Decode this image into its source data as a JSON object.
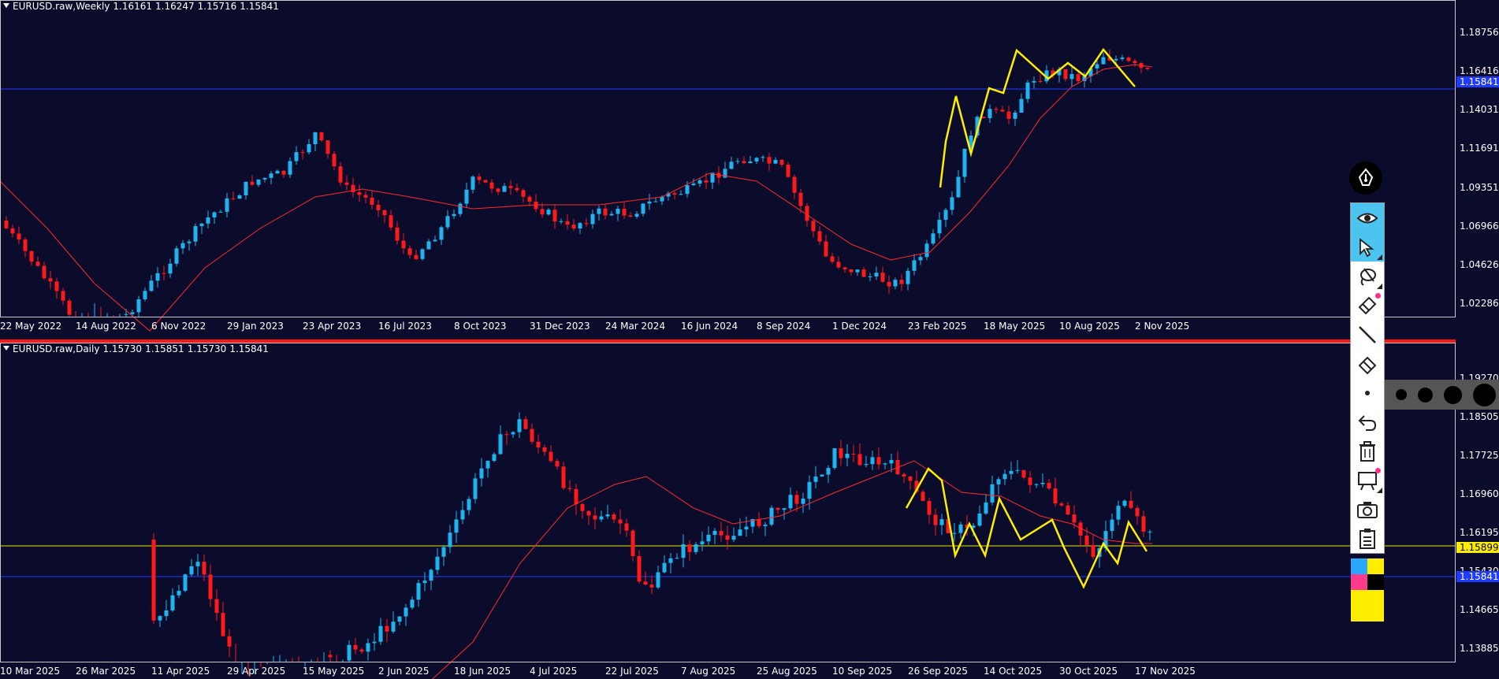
{
  "weekly_chart": {
    "symbol": "EURUSD.raw,Weekly",
    "ohlc": [
      "1.16161",
      "1.16247",
      "1.15716",
      "1.15841"
    ],
    "price_axis": [
      "1.18756",
      "1.16416",
      "1.14031",
      "1.11691",
      "1.09351",
      "1.06966",
      "1.04626",
      "1.02286"
    ],
    "current_price_tag": "1.15841",
    "time_axis": [
      "22 May 2022",
      "14 Aug 2022",
      "6 Nov 2022",
      "29 Jan 2023",
      "23 Apr 2023",
      "16 Jul 2023",
      "8 Oct 2023",
      "31 Dec 2023",
      "24 Mar 2024",
      "16 Jun 2024",
      "8 Sep 2024",
      "1 Dec 2024",
      "23 Feb 2025",
      "18 May 2025",
      "10 Aug 2025",
      "2 Nov 2025"
    ],
    "colors": {
      "bull": "#1fb4f0",
      "bear": "#ff1a1a",
      "ma": "#ff2a2a",
      "zigzag": "#ffee00",
      "hline": "#1f3bff"
    }
  },
  "daily_chart": {
    "symbol": "EURUSD.raw,Daily",
    "ohlc": [
      "1.15730",
      "1.15851",
      "1.15730",
      "1.15841"
    ],
    "price_axis": [
      "1.19270",
      "1.18505",
      "1.17725",
      "1.16960",
      "1.16195",
      "1.15430",
      "1.14665",
      "1.13885"
    ],
    "yellow_line_tag": "1.15899",
    "current_price_tag": "1.15841",
    "time_axis": [
      "10 Mar 2025",
      "26 Mar 2025",
      "11 Apr 2025",
      "29 Apr 2025",
      "15 May 2025",
      "2 Jun 2025",
      "18 Jun 2025",
      "4 Jul 2025",
      "22 Jul 2025",
      "7 Aug 2025",
      "25 Aug 2025",
      "10 Sep 2025",
      "26 Sep 2025",
      "14 Oct 2025",
      "30 Oct 2025",
      "17 Nov 2025"
    ],
    "colors": {
      "yellow_hline": "#e6e600",
      "hline": "#1f3bff"
    }
  },
  "toolbar": {
    "tools": [
      "eye-icon",
      "cursor-arrow-icon",
      "lasso-icon",
      "highlighter-icon",
      "line-icon",
      "eraser-icon",
      "dot-icon",
      "undo-icon",
      "trash-icon",
      "board-icon",
      "camera-icon",
      "clipboard-icon"
    ],
    "palette": [
      "#29a8ff",
      "#ffee00",
      "#ff3c8c",
      "#000000",
      "#ffee00"
    ]
  }
}
